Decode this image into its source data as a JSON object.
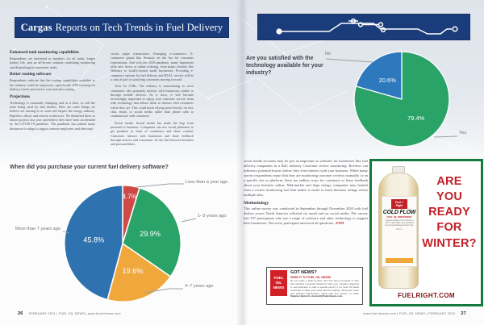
{
  "header": {
    "brand": "Cargas",
    "title": "Reports on Tech Trends in Fuel Delivery"
  },
  "article": {
    "sections": [
      {
        "heading": "Enhanced tank monitoring capabilities",
        "body": "Respondents are interested in monitors for oil tanks, longer battery life, and an all-in-one solution combining monitoring and dispatching for automatic tanks."
      },
      {
        "heading": "Better routing software",
        "body": "Respondents indicate that the routing capabilities available to the industry could be improved—specifically GPS tracking for delivery trucks and service vans and auto routing."
      },
      {
        "heading": "Projections",
        "body": "Technology is constantly changing, and as it does, so will the tools being used by fuel dealers. Here are some things we believe are starting to or soon will impact the energy industry. Paperless offices and remote workforces. We identified these as future projects last year and believe they have been accelerated by the COVID-19 pandemic. The pandemic has pushed many businesses to adapt to support remote employees and electronic"
      }
    ],
    "column2": [
      "versus paper transactions. Emerging e-commerce. E-commerce giants like Amazon set the bar for consumer expectations. And with the 2020 pandemic, many businesses offer new forms of online ordering, from major retailers like Walmart to locally-owned small businesses. Providing e-commerce options for fuel delivery and HVAC service will be a critical part of satisfying customers moving forward.",
      "Tech for CSRs. The industry is transitioning to serve consumers who primarily interact with businesses online or through mobile devices. As it does, it will become increasingly important to equip your customer service team with technology that allows them to interact with customers where they are. This could mean relying more heavily on text, chat, email, or social media rather than phone calls to communicate with customers.",
      "Social media. Social media has made the leap from personal to business. Companies can use social platforms to get products in front of consumers and share content. Customers interact with businesses and share feedback through reviews and comments. As the line between business and personal blurs,"
    ],
    "column3_intro": "social media accounts may be just as important as websites for businesses like fuel delivery companies in a B2C industry. Customer review monitoring. Reviews can influence potential buyers before they even interact with your business. While many survey respondents report that they are monitoring customer reviews manually or on a specific site or platform, there are endless ways for customers to leave feedback about your business online. Mid-market and large energy companies may benefit from a review monitoring tool that makes it easier to track business ratings across multiple sites.",
    "methodology": {
      "heading": "Methodology",
      "body": "This online survey was conducted in September through November 2020 with fuel dealers across North America solicited via email and on social media. The survey had 107 participants who use a range of software and other technology to support their businesses. Not every participant answered all questions. |"
    },
    "end_mark": "FON"
  },
  "chart_data": [
    {
      "type": "pie",
      "title": "Are you satisfied with the technology available for your industry?",
      "start_angle": "12-oclock",
      "direction": "clockwise",
      "legend": "callout-labels",
      "slices": [
        {
          "label": "Yes",
          "value": 79.4,
          "color": "#2aa368"
        },
        {
          "label": "No",
          "value": 20.6,
          "color": "#2e79bd"
        }
      ]
    },
    {
      "type": "pie",
      "title": "When did you purchase your current fuel delivery software?",
      "start_angle": "12-oclock",
      "direction": "clockwise",
      "legend": "callout-labels",
      "slices": [
        {
          "label": "Less than a year ago",
          "value": 4.7,
          "color": "#cf4a47"
        },
        {
          "label": "1–3 years ago",
          "value": 29.9,
          "color": "#2aa368"
        },
        {
          "label": "4–7 years ago",
          "value": 19.6,
          "color": "#f0a73c"
        },
        {
          "label": "More than 7 years ago",
          "value": 45.8,
          "color": "#2e73b0"
        }
      ]
    }
  ],
  "got_news": {
    "logo_lines": [
      "FUEL",
      "OIL",
      "NEWS"
    ],
    "headline": "GOT NEWS?",
    "subheadline": "SEND IT TO FUEL OIL NEWS!",
    "body": "Do you have a staff member who has been promoted or who has reached a special milestone? Has your company acquired a new business or held a special event? If so, Fuel Oil News would like to share your news with the industry. Send your news and editorial submissions, along with any photos, to editor",
    "contact": "Stephen Bennett, sbennett@fueloilnews.com."
  },
  "ad": {
    "headline": [
      "ARE",
      "YOU",
      "READY",
      "FOR",
      "WINTER?"
    ],
    "website": "FUELRIGHT.COM",
    "bottle": {
      "brand_line1": "Fuel +",
      "brand_line2": "Right",
      "product": "COLD FLOW",
      "subtitle": "FUEL OIL WINTERIZER",
      "details": "Prevents gelling of fuel oil down to -40°F. Treats tanks, lines and filters to keep heat flowing all winter long.",
      "size": "32 fl oz"
    }
  },
  "footer": {
    "left_page_number": "26",
    "left_text": "FEBRUARY 2021  |  FUEL OIL NEWS  |  www.fueloilnews.com",
    "right_text": "www.fueloilnews.com  |  FUEL OIL NEWS  |  FEBRUARY 2021",
    "right_page_number": "27"
  },
  "colors": {
    "navy": "#1b3c7b",
    "pie_green": "#2aa368",
    "pie_blue_no": "#2e79bd",
    "pie_blue": "#2e73b0",
    "pie_orange": "#f0a73c",
    "pie_red": "#cf4a47",
    "ad_red": "#c22026",
    "ad_border_green": "#157a3e",
    "logo_red": "#d12026"
  }
}
